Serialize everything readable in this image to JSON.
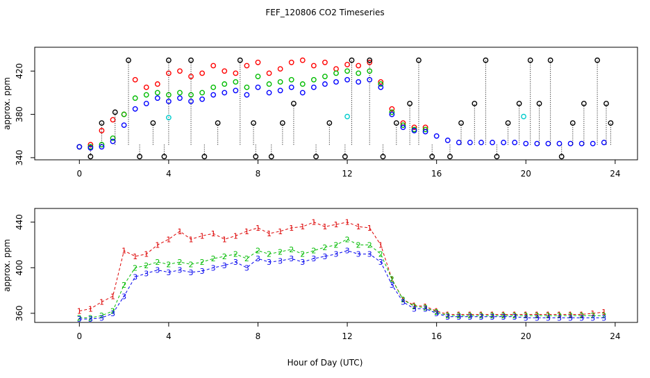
{
  "chart_data": [
    {
      "type": "scatter",
      "title": "FEF_120806  CO2 Timeseries",
      "xlabel": "",
      "ylabel": "approx. ppm",
      "xlim": [
        -2,
        25
      ],
      "ylim": [
        338,
        442
      ],
      "xticks": [
        "0",
        "4",
        "8",
        "12",
        "16",
        "20",
        "24"
      ],
      "yticks": [
        "340",
        "380",
        "420"
      ],
      "series": [
        {
          "name": "red",
          "color": "#ff0000",
          "x": [
            0,
            0.5,
            1,
            1.5,
            2,
            2.5,
            3,
            3.5,
            4,
            4.5,
            5,
            5.5,
            6,
            6.5,
            7,
            7.5,
            8,
            8.5,
            9,
            9.5,
            10,
            10.5,
            11,
            11.5,
            12,
            12.5,
            13,
            13.5,
            14,
            14.5,
            15,
            15.5
          ],
          "y": [
            350,
            352,
            365,
            375,
            380,
            412,
            405,
            408,
            418,
            420,
            415,
            418,
            425,
            420,
            418,
            425,
            428,
            418,
            422,
            428,
            430,
            425,
            428,
            422,
            426,
            425,
            428,
            410,
            385,
            372,
            368,
            368
          ]
        },
        {
          "name": "green",
          "color": "#00bb00",
          "x": [
            0,
            0.5,
            1,
            1.5,
            2,
            2.5,
            3,
            3.5,
            4,
            4.5,
            5,
            5.5,
            6,
            6.5,
            7,
            7.5,
            8,
            8.5,
            9,
            9.5,
            10,
            10.5,
            11,
            11.5,
            12,
            12.5,
            13,
            13.5,
            14,
            14.5,
            15,
            15.5
          ],
          "y": [
            350,
            350,
            352,
            358,
            380,
            395,
            398,
            400,
            398,
            400,
            398,
            400,
            405,
            408,
            410,
            405,
            415,
            408,
            410,
            412,
            408,
            412,
            415,
            418,
            420,
            418,
            420,
            408,
            382,
            370,
            366,
            366
          ]
        },
        {
          "name": "blue",
          "color": "#0000ff",
          "x": [
            0,
            0.5,
            1,
            1.5,
            2,
            2.5,
            3,
            3.5,
            4,
            4.5,
            5,
            5.5,
            6,
            6.5,
            7,
            7.5,
            8,
            8.5,
            9,
            9.5,
            10,
            10.5,
            11,
            11.5,
            12,
            12.5,
            13,
            13.5,
            14,
            14.5,
            15,
            15.5,
            16,
            16.5,
            17,
            17.5,
            18,
            18.5,
            19,
            19.5,
            20,
            20.5,
            21,
            21.5,
            22,
            22.5,
            23,
            23.5
          ],
          "y": [
            350,
            349,
            350,
            355,
            370,
            385,
            390,
            395,
            392,
            395,
            392,
            394,
            398,
            400,
            402,
            398,
            405,
            400,
            402,
            405,
            400,
            405,
            408,
            410,
            412,
            410,
            412,
            405,
            380,
            368,
            365,
            364,
            360,
            356,
            354,
            354,
            354,
            354,
            354,
            354,
            353,
            353,
            353,
            353,
            353,
            353,
            353,
            354
          ]
        },
        {
          "name": "black",
          "color": "#000000",
          "x": [
            0.5,
            1,
            1.6,
            2.2,
            2.7,
            3.3,
            3.8,
            4,
            5,
            5.6,
            6.2,
            7.2,
            7.8,
            7.9,
            8.6,
            9.1,
            9.6,
            10.6,
            11.2,
            11.9,
            12.2,
            13,
            13.6,
            14.2,
            14.8,
            15.2,
            15.8,
            16.6,
            17.1,
            17.7,
            18.2,
            18.7,
            19.2,
            19.7,
            20.2,
            20.6,
            21.1,
            21.6,
            22.1,
            22.6,
            23.2,
            23.6,
            23.8
          ],
          "y": [
            341,
            372,
            382,
            430,
            341,
            372,
            341,
            430,
            430,
            341,
            372,
            430,
            372,
            341,
            341,
            372,
            390,
            341,
            372,
            341,
            430,
            430,
            341,
            372,
            390,
            430,
            341,
            341,
            372,
            390,
            430,
            341,
            372,
            390,
            430,
            390,
            430,
            341,
            372,
            390,
            430,
            390,
            372
          ]
        },
        {
          "name": "cyan",
          "color": "#00cccc",
          "x": [
            4,
            12,
            19.9
          ],
          "y": [
            377,
            378,
            378
          ]
        }
      ]
    },
    {
      "type": "line",
      "title": "",
      "xlabel": "Hour of Day (UTC)",
      "ylabel": "approx. ppm",
      "xlim": [
        -2,
        25
      ],
      "ylim": [
        352,
        452
      ],
      "xticks": [
        "0",
        "4",
        "8",
        "12",
        "16",
        "20",
        "24"
      ],
      "yticks": [
        "360",
        "400",
        "440"
      ],
      "series": [
        {
          "name": "1",
          "color": "#dd0000",
          "marker": "1",
          "x": [
            0,
            0.5,
            1,
            1.5,
            2,
            2.5,
            3,
            3.5,
            4,
            4.5,
            5,
            5.5,
            6,
            6.5,
            7,
            7.5,
            8,
            8.5,
            9,
            9.5,
            10,
            10.5,
            11,
            11.5,
            12,
            12.5,
            13,
            13.5,
            14,
            14.5,
            15,
            15.5,
            16,
            16.5,
            17,
            17.5,
            18,
            18.5,
            19,
            19.5,
            20,
            20.5,
            21,
            21.5,
            22,
            22.5,
            23,
            23.5
          ],
          "y": [
            362,
            364,
            370,
            375,
            415,
            410,
            412,
            420,
            425,
            432,
            425,
            428,
            430,
            425,
            428,
            432,
            435,
            430,
            432,
            435,
            436,
            440,
            436,
            438,
            440,
            436,
            435,
            420,
            390,
            372,
            367,
            366,
            362,
            359,
            359,
            359,
            359,
            359,
            359,
            359,
            359,
            359,
            359,
            359,
            359,
            359,
            360,
            361
          ]
        },
        {
          "name": "2",
          "color": "#00bb00",
          "marker": "2",
          "x": [
            0,
            0.5,
            1,
            1.5,
            2,
            2.5,
            3,
            3.5,
            4,
            4.5,
            5,
            5.5,
            6,
            6.5,
            7,
            7.5,
            8,
            8.5,
            9,
            9.5,
            10,
            10.5,
            11,
            11.5,
            12,
            12.5,
            13,
            13.5,
            14,
            14.5,
            15,
            15.5,
            16,
            16.5,
            17,
            17.5,
            18,
            18.5,
            19,
            19.5,
            20,
            20.5,
            21,
            21.5,
            22,
            22.5,
            23,
            23.5
          ],
          "y": [
            356,
            356,
            358,
            362,
            385,
            400,
            402,
            405,
            403,
            405,
            403,
            405,
            408,
            410,
            412,
            408,
            415,
            412,
            414,
            416,
            412,
            415,
            418,
            420,
            425,
            420,
            420,
            412,
            390,
            372,
            366,
            365,
            361,
            358,
            358,
            358,
            358,
            358,
            358,
            358,
            358,
            358,
            358,
            358,
            358,
            358,
            358,
            358
          ]
        },
        {
          "name": "3",
          "color": "#0000ee",
          "marker": "3",
          "x": [
            0,
            0.5,
            1,
            1.5,
            2,
            2.5,
            3,
            3.5,
            4,
            4.5,
            5,
            5.5,
            6,
            6.5,
            7,
            7.5,
            8,
            8.5,
            9,
            9.5,
            10,
            10.5,
            11,
            11.5,
            12,
            12.5,
            13,
            13.5,
            14,
            14.5,
            15,
            15.5,
            16,
            16.5,
            17,
            17.5,
            18,
            18.5,
            19,
            19.5,
            20,
            20.5,
            21,
            21.5,
            22,
            22.5,
            23,
            23.5
          ],
          "y": [
            355,
            355,
            356,
            360,
            375,
            392,
            395,
            398,
            396,
            398,
            396,
            397,
            400,
            402,
            405,
            400,
            408,
            405,
            406,
            408,
            405,
            408,
            410,
            412,
            415,
            412,
            412,
            405,
            385,
            370,
            364,
            364,
            360,
            357,
            357,
            357,
            357,
            357,
            357,
            357,
            356,
            356,
            356,
            356,
            356,
            356,
            356,
            356
          ]
        }
      ]
    }
  ]
}
